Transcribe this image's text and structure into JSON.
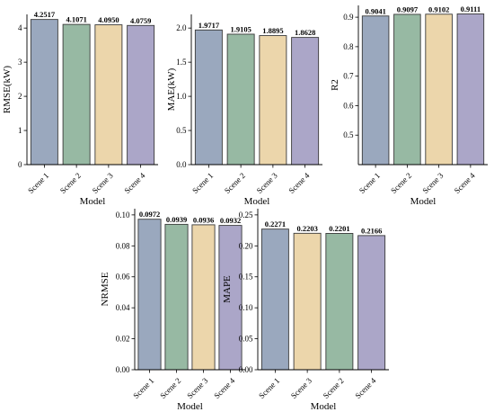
{
  "figure": {
    "background": "#ffffff",
    "bar_edge_color": "#3a3a3a",
    "series_colors": {
      "Scene 1": "#9aa8be",
      "Scene 2": "#97b9a3",
      "Scene 3": "#ecd6ab",
      "Scene 4": "#aba6c8"
    }
  },
  "chart_data": [
    {
      "type": "bar",
      "categories": [
        "Scene 1",
        "Scene 2",
        "Scene 3",
        "Scene 4"
      ],
      "values": [
        4.2517,
        4.1071,
        4.095,
        4.0759
      ],
      "data_labels": [
        "4.2517",
        "4.1071",
        "4.0950",
        "4.0759"
      ],
      "xlabel": "Model",
      "ylabel": "RMSE(kW)",
      "ylim": [
        0,
        4.4
      ],
      "yticks": [
        0,
        1,
        2,
        3,
        4
      ],
      "ytick_labels": [
        "0",
        "1",
        "2",
        "3",
        "4"
      ],
      "grid": false
    },
    {
      "type": "bar",
      "categories": [
        "Scene 1",
        "Scene 2",
        "Scene 3",
        "Scene 4"
      ],
      "values": [
        1.9717,
        1.9105,
        1.8895,
        1.8628
      ],
      "data_labels": [
        "1.9717",
        "1.9105",
        "1.8895",
        "1.8628"
      ],
      "xlabel": "Model",
      "ylabel": "MAE(kW)",
      "ylim": [
        0,
        2.2
      ],
      "yticks": [
        0,
        0.5,
        1.0,
        1.5,
        2.0
      ],
      "ytick_labels": [
        "0.0",
        "0.5",
        "1.0",
        "1.5",
        "2.0"
      ],
      "grid": false
    },
    {
      "type": "bar",
      "categories": [
        "Scene 1",
        "Scene 2",
        "Scene 3",
        "Scene 4"
      ],
      "values": [
        0.9041,
        0.9097,
        0.9102,
        0.9111
      ],
      "data_labels": [
        "0.9041",
        "0.9097",
        "0.9102",
        "0.9111"
      ],
      "xlabel": "Model",
      "ylabel": "R2",
      "ylim": [
        0.4,
        0.94
      ],
      "yticks": [
        0.5,
        0.6,
        0.7,
        0.8,
        0.9
      ],
      "ytick_labels": [
        "0.5",
        "0.6",
        "0.7",
        "0.8",
        "0.9"
      ],
      "grid": false
    },
    {
      "type": "bar",
      "categories": [
        "Scene 1",
        "Scene 2",
        "Scene 3",
        "Scene 4"
      ],
      "values": [
        0.0972,
        0.0939,
        0.0936,
        0.0932
      ],
      "data_labels": [
        "0.0972",
        "0.0939",
        "0.0936",
        "0.0932"
      ],
      "xlabel": "Model",
      "ylabel": "NRMSE",
      "ylim": [
        0,
        0.104
      ],
      "yticks": [
        0,
        0.02,
        0.04,
        0.06,
        0.08,
        0.1
      ],
      "ytick_labels": [
        "0.00",
        "0.02",
        "0.04",
        "0.06",
        "0.08",
        "0.10"
      ],
      "grid": false
    },
    {
      "type": "bar",
      "categories": [
        "Scene 1",
        "Scene 3",
        "Scene 2",
        "Scene 4"
      ],
      "values": [
        0.2271,
        0.2203,
        0.2201,
        0.2166
      ],
      "data_labels": [
        "0.2271",
        "0.2203",
        "0.2201",
        "0.2166"
      ],
      "xlabel": "Model",
      "ylabel": "MAPE",
      "ylim": [
        0,
        0.26
      ],
      "yticks": [
        0,
        0.05,
        0.1,
        0.15,
        0.2,
        0.25
      ],
      "ytick_labels": [
        "0.00",
        "0.05",
        "0.10",
        "0.15",
        "0.20",
        "0.25"
      ],
      "grid": false
    }
  ]
}
